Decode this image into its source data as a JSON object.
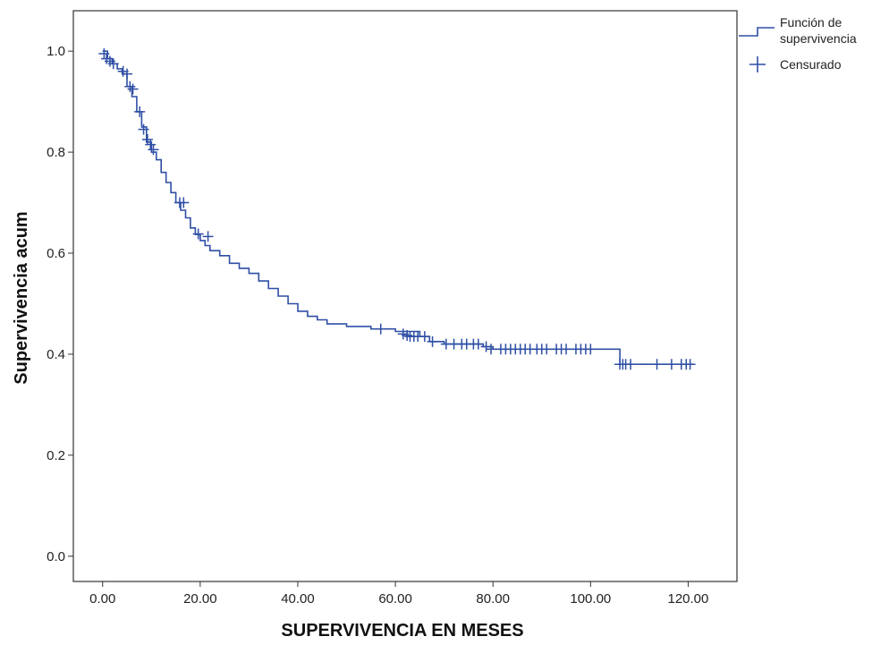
{
  "chart_data": {
    "type": "line",
    "title": "",
    "xlabel": "SUPERVIVENCIA EN MESES",
    "ylabel": "Supervivencia acum",
    "xlim": [
      -6,
      130
    ],
    "ylim": [
      -0.05,
      1.08
    ],
    "x_ticks": [
      0,
      20,
      40,
      60,
      80,
      100,
      120
    ],
    "x_tick_labels": [
      "0.00",
      "20.00",
      "40.00",
      "60.00",
      "80.00",
      "100.00",
      "120.00"
    ],
    "y_ticks": [
      0,
      0.2,
      0.4,
      0.6,
      0.8,
      1.0
    ],
    "y_tick_labels": [
      "0.0",
      "0.2",
      "0.4",
      "0.6",
      "0.8",
      "1.0"
    ],
    "grid": false,
    "legend_position": "top-right, outside plot",
    "series": [
      {
        "name": "Función de supervivencia",
        "style": "step",
        "color": "#2f4fa5",
        "x": [
          0,
          1,
          2,
          3,
          4,
          5,
          6,
          7,
          8,
          9,
          10,
          11,
          12,
          13,
          14,
          15,
          16,
          17,
          18,
          19,
          20,
          21,
          22,
          24,
          26,
          28,
          30,
          32,
          34,
          36,
          38,
          40,
          42,
          44,
          46,
          50,
          55,
          60,
          65,
          67,
          70,
          78,
          80,
          100,
          106,
          121
        ],
        "y": [
          1.0,
          0.985,
          0.975,
          0.965,
          0.955,
          0.93,
          0.91,
          0.88,
          0.85,
          0.82,
          0.8,
          0.785,
          0.76,
          0.74,
          0.72,
          0.7,
          0.685,
          0.67,
          0.65,
          0.637,
          0.625,
          0.615,
          0.605,
          0.595,
          0.58,
          0.57,
          0.56,
          0.545,
          0.53,
          0.515,
          0.5,
          0.485,
          0.475,
          0.468,
          0.46,
          0.455,
          0.45,
          0.445,
          0.435,
          0.425,
          0.42,
          0.415,
          0.41,
          0.41,
          0.38,
          0.38
        ]
      },
      {
        "name": "Censurado",
        "style": "censor-marks",
        "color": "#2f4fa5",
        "points": [
          [
            0.3,
            0.995
          ],
          [
            0.8,
            0.985
          ],
          [
            1.5,
            0.98
          ],
          [
            2.2,
            0.975
          ],
          [
            4.2,
            0.96
          ],
          [
            5.0,
            0.955
          ],
          [
            5.6,
            0.93
          ],
          [
            6.2,
            0.925
          ],
          [
            7.6,
            0.88
          ],
          [
            8.4,
            0.845
          ],
          [
            9.2,
            0.825
          ],
          [
            9.8,
            0.815
          ],
          [
            10.4,
            0.805
          ],
          [
            15.8,
            0.7
          ],
          [
            16.6,
            0.7
          ],
          [
            19.6,
            0.638
          ],
          [
            21.6,
            0.633
          ],
          [
            57.0,
            0.45
          ],
          [
            61.6,
            0.44
          ],
          [
            62.4,
            0.437
          ],
          [
            63.0,
            0.435
          ],
          [
            63.8,
            0.435
          ],
          [
            64.6,
            0.435
          ],
          [
            66.0,
            0.435
          ],
          [
            67.6,
            0.425
          ],
          [
            70.4,
            0.42
          ],
          [
            72.0,
            0.42
          ],
          [
            73.6,
            0.42
          ],
          [
            74.6,
            0.42
          ],
          [
            76.0,
            0.42
          ],
          [
            77.0,
            0.42
          ],
          [
            78.6,
            0.415
          ],
          [
            79.6,
            0.41
          ],
          [
            81.6,
            0.41
          ],
          [
            82.6,
            0.41
          ],
          [
            83.6,
            0.41
          ],
          [
            84.6,
            0.41
          ],
          [
            85.6,
            0.41
          ],
          [
            86.6,
            0.41
          ],
          [
            87.6,
            0.41
          ],
          [
            89.0,
            0.41
          ],
          [
            90.0,
            0.41
          ],
          [
            91.0,
            0.41
          ],
          [
            93.0,
            0.41
          ],
          [
            94.0,
            0.41
          ],
          [
            95.0,
            0.41
          ],
          [
            97.0,
            0.41
          ],
          [
            98.0,
            0.41
          ],
          [
            99.0,
            0.41
          ],
          [
            100.0,
            0.41
          ],
          [
            106.0,
            0.38
          ],
          [
            106.6,
            0.38
          ],
          [
            107.2,
            0.38
          ],
          [
            108.2,
            0.38
          ],
          [
            113.6,
            0.38
          ],
          [
            116.6,
            0.38
          ],
          [
            118.6,
            0.38
          ],
          [
            119.6,
            0.38
          ],
          [
            120.4,
            0.38
          ]
        ]
      }
    ],
    "legend": {
      "items": [
        {
          "label_line1": "Función de",
          "label_line2": "supervivencia",
          "symbol": "step-line"
        },
        {
          "label_line1": "Censurado",
          "label_line2": "",
          "symbol": "plus"
        }
      ]
    },
    "colors": {
      "series": "#2f4fa5",
      "axis": "#333333",
      "background": "#ffffff"
    }
  }
}
